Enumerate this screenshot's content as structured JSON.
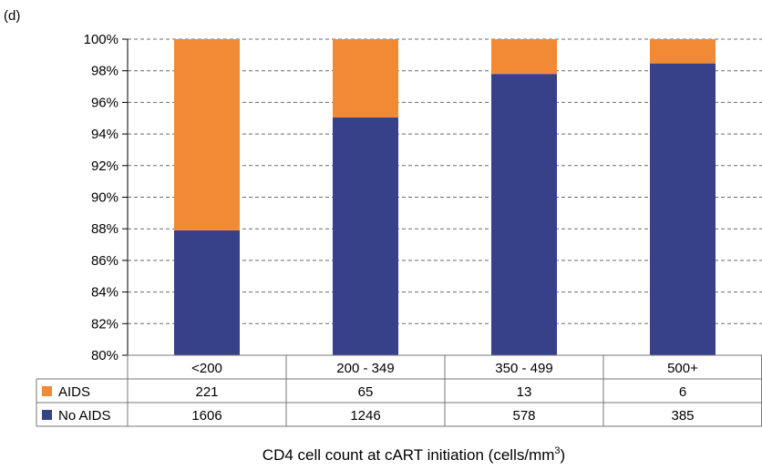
{
  "panel_label": "(d)",
  "chart_data": {
    "type": "bar",
    "stacked": true,
    "normalized": true,
    "categories": [
      "<200",
      "200 - 349",
      "350 - 499",
      "500+"
    ],
    "series": [
      {
        "name": "No AIDS",
        "values": [
          1606,
          1246,
          578,
          385
        ],
        "color": "#37418a"
      },
      {
        "name": "AIDS",
        "values": [
          221,
          65,
          13,
          6
        ],
        "color": "#f08a34"
      }
    ],
    "ylim": [
      80,
      100
    ],
    "yticks": [
      "80%",
      "82%",
      "84%",
      "86%",
      "88%",
      "90%",
      "92%",
      "94%",
      "96%",
      "98%",
      "100%"
    ],
    "grid": "dashed-horizontal",
    "data_table": {
      "rows": [
        {
          "label": "AIDS",
          "color": "#f08a34",
          "values": [
            "221",
            "65",
            "13",
            "6"
          ]
        },
        {
          "label": "No AIDS",
          "color": "#37418a",
          "values": [
            "1606",
            "1246",
            "578",
            "385"
          ]
        }
      ]
    },
    "xlabel_main": "CD4 cell count at cART initiation (cells/mm",
    "xlabel_sup": "3",
    "xlabel_end": ")"
  }
}
